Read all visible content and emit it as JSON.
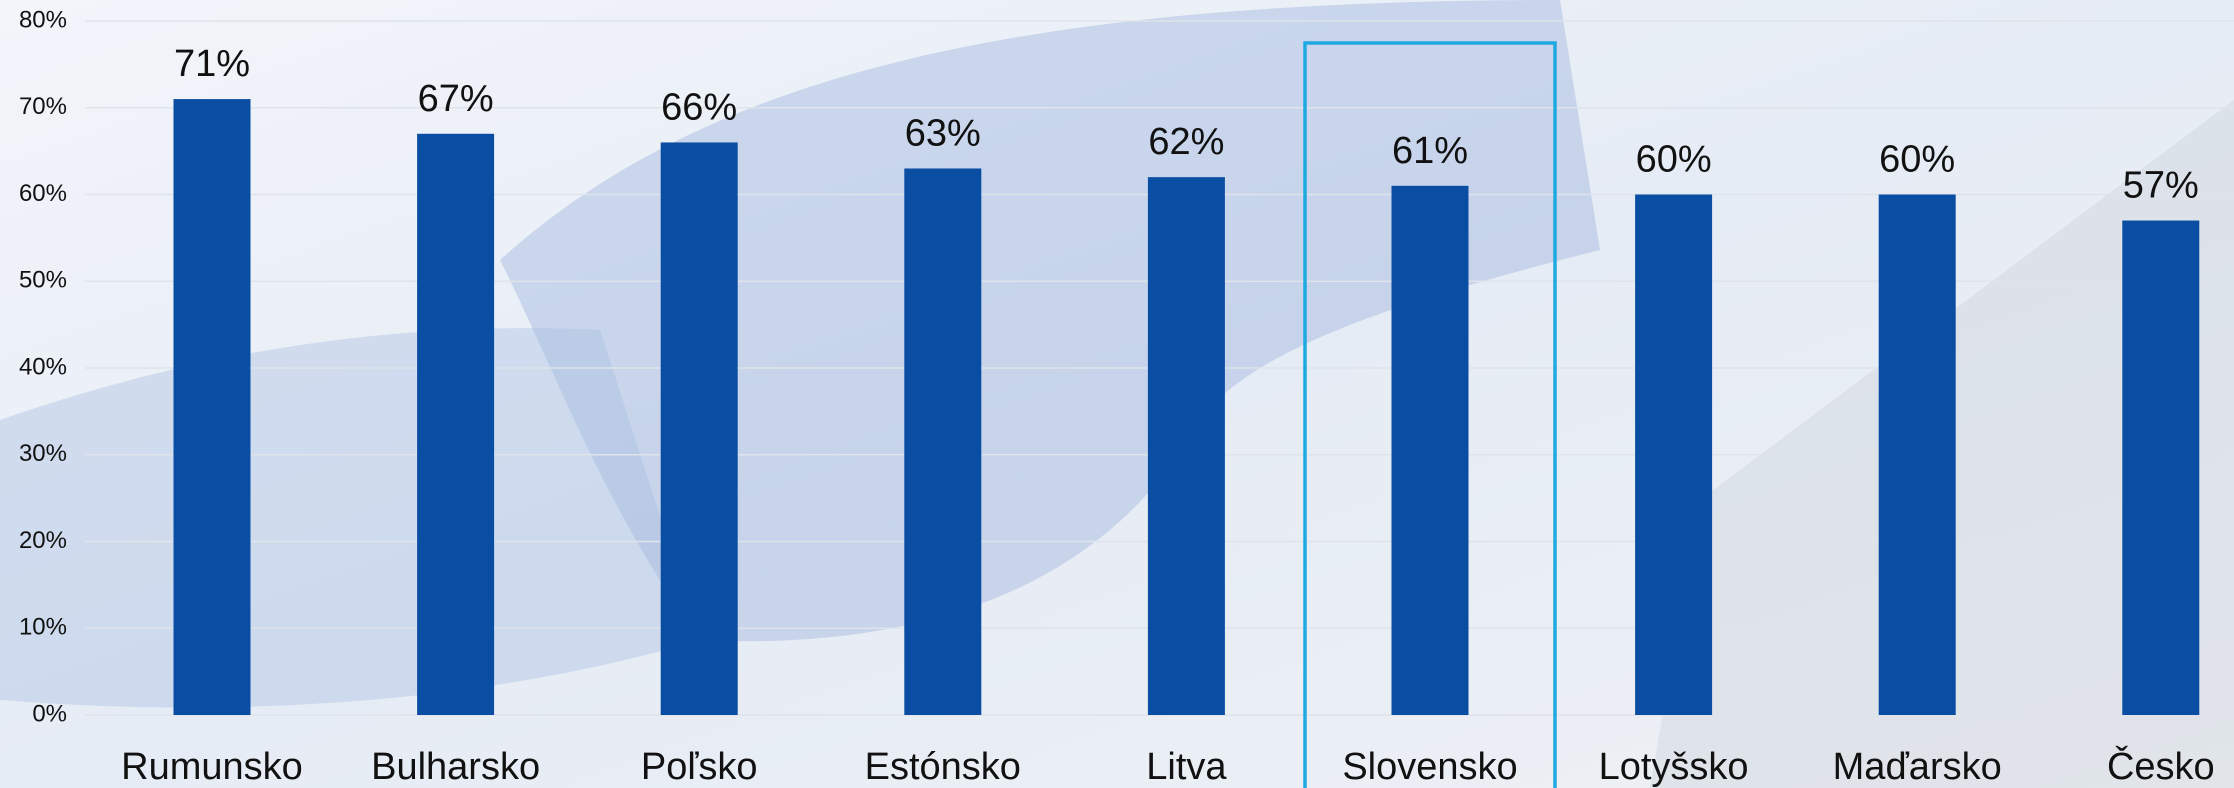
{
  "chart_data": {
    "type": "bar",
    "categories": [
      "Rumunsko",
      "Bulharsko",
      "Poľsko",
      "Estónsko",
      "Litva",
      "Slovensko",
      "Lotyšsko",
      "Maďarsko",
      "Česko"
    ],
    "values": [
      71,
      67,
      66,
      63,
      62,
      61,
      60,
      60,
      57
    ],
    "value_labels": [
      "71%",
      "67%",
      "66%",
      "63%",
      "62%",
      "61%",
      "60%",
      "60%",
      "57%"
    ],
    "color": "#0a4ea3",
    "highlight_category": "Slovensko",
    "highlight_color": "#1fa9e1",
    "ylim": [
      0,
      80
    ],
    "yticks": [
      {
        "value": 0,
        "label": "0%"
      },
      {
        "value": 10,
        "label": "10%"
      },
      {
        "value": 20,
        "label": "20%"
      },
      {
        "value": 30,
        "label": "30%"
      },
      {
        "value": 40,
        "label": "40%"
      },
      {
        "value": 50,
        "label": "50%"
      },
      {
        "value": 60,
        "label": "60%"
      },
      {
        "value": 70,
        "label": "70%"
      },
      {
        "value": 80,
        "label": "80%"
      }
    ],
    "grid": true
  }
}
